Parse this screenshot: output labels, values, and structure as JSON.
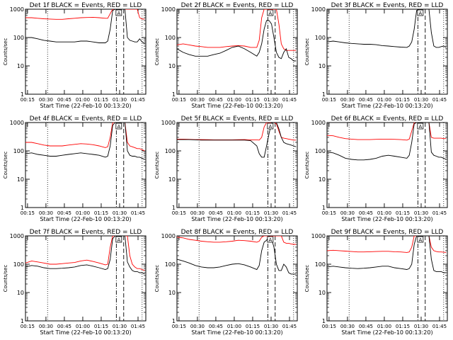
{
  "figure": {
    "x_ticks": [
      "00:15",
      "00:30",
      "00:45",
      "01:00",
      "01:15",
      "01:30",
      "01:45"
    ],
    "y_ticks": [
      "1",
      "10",
      "100",
      "1000"
    ],
    "xlabel": "Start Time (22-Feb-10 00:13:20)",
    "ylabel": "Counts/sec",
    "marker_label": "A",
    "colors": {
      "events": "#000000",
      "lld": "#ff0000"
    }
  },
  "chart_data": [
    {
      "type": "line",
      "title": "Det 1f BLACK = Events, RED = LLD",
      "x_unit": "minutes after 00:13:20",
      "x": [
        0,
        5,
        10,
        15,
        20,
        25,
        30,
        35,
        40,
        45,
        50,
        55,
        60,
        65,
        67,
        69,
        71,
        73,
        75,
        77,
        79,
        81,
        83,
        85,
        87,
        89,
        91,
        93,
        95,
        97
      ],
      "series": [
        {
          "values": [
            100,
            100,
            90,
            80,
            75,
            70,
            70,
            70,
            70,
            75,
            75,
            70,
            65,
            65,
            75,
            200,
            900,
            1000,
            1000,
            1000,
            1000,
            1000,
            100,
            80,
            75,
            70,
            70,
            90,
            70,
            60
          ]
        },
        {
          "values": [
            500,
            500,
            480,
            460,
            450,
            440,
            440,
            460,
            480,
            500,
            510,
            520,
            500,
            480,
            480,
            700,
            1000,
            1000,
            1000,
            1000,
            1000,
            1000,
            1000,
            1000,
            1000,
            1000,
            1000,
            500,
            450,
            450
          ]
        }
      ],
      "ylim": [
        1,
        1000
      ],
      "yscale": "log",
      "xlim": [
        0,
        98
      ],
      "vlines_dotted": [
        18,
        95
      ],
      "vlines_dashdot": [
        74
      ],
      "vlines_dashed": [
        80
      ],
      "marker_x": 76
    },
    {
      "type": "line",
      "title": "Det 2f BLACK = Events, RED = LLD",
      "x_unit": "minutes after 00:13:20",
      "x": [
        0,
        5,
        10,
        15,
        20,
        25,
        30,
        35,
        40,
        45,
        50,
        55,
        60,
        65,
        67,
        69,
        71,
        73,
        75,
        77,
        79,
        81,
        83,
        85,
        87,
        89,
        91,
        93,
        95,
        97
      ],
      "series": [
        {
          "values": [
            40,
            30,
            25,
            22,
            22,
            22,
            25,
            28,
            35,
            45,
            50,
            40,
            30,
            22,
            30,
            60,
            200,
            400,
            400,
            300,
            100,
            30,
            20,
            18,
            30,
            40,
            20,
            18,
            15,
            15
          ]
        },
        {
          "values": [
            55,
            60,
            55,
            50,
            48,
            45,
            45,
            45,
            48,
            50,
            52,
            50,
            45,
            45,
            80,
            500,
            1000,
            1000,
            1000,
            1000,
            1000,
            1000,
            300,
            60,
            40,
            35,
            35,
            35,
            35,
            35
          ]
        }
      ],
      "ylim": [
        1,
        1000
      ],
      "yscale": "log",
      "xlim": [
        0,
        98
      ],
      "vlines_dotted": [
        18,
        95
      ],
      "vlines_dashdot": [
        74
      ],
      "vlines_dashed": [
        80
      ],
      "marker_x": 76
    },
    {
      "type": "line",
      "title": "Det 3f BLACK = Events, RED = LLD",
      "x_unit": "minutes after 00:13:20",
      "x": [
        0,
        5,
        10,
        15,
        20,
        25,
        30,
        35,
        40,
        45,
        50,
        55,
        60,
        65,
        67,
        69,
        71,
        73,
        75,
        77,
        79,
        81,
        83,
        85,
        87,
        89,
        91,
        93,
        95,
        97
      ],
      "series": [
        {
          "values": [
            70,
            75,
            70,
            65,
            62,
            60,
            58,
            58,
            56,
            52,
            50,
            48,
            46,
            45,
            50,
            70,
            200,
            900,
            1000,
            1000,
            1000,
            1000,
            1000,
            150,
            50,
            45,
            45,
            48,
            50,
            45
          ]
        }
      ],
      "ylim": [
        1,
        1000
      ],
      "yscale": "log",
      "xlim": [
        0,
        98
      ],
      "vlines_dotted": [
        18,
        95
      ],
      "vlines_dashdot": [
        74
      ],
      "vlines_dashed": [
        80
      ],
      "marker_x": 76
    },
    {
      "type": "line",
      "title": "Det 4f BLACK = Events, RED = LLD",
      "x_unit": "minutes after 00:13:20",
      "x": [
        0,
        5,
        10,
        15,
        20,
        25,
        30,
        35,
        40,
        45,
        50,
        55,
        60,
        65,
        67,
        69,
        71,
        73,
        75,
        77,
        79,
        81,
        83,
        85,
        87,
        89,
        91,
        93,
        95,
        97
      ],
      "series": [
        {
          "values": [
            80,
            85,
            75,
            70,
            65,
            65,
            70,
            75,
            80,
            85,
            80,
            75,
            70,
            60,
            65,
            150,
            800,
            1000,
            1000,
            1000,
            1000,
            1000,
            100,
            70,
            65,
            65,
            60,
            60,
            55,
            50
          ]
        },
        {
          "values": [
            200,
            200,
            180,
            160,
            150,
            150,
            150,
            160,
            170,
            180,
            175,
            165,
            150,
            130,
            140,
            300,
            1000,
            1000,
            1000,
            1000,
            1000,
            1000,
            200,
            150,
            140,
            130,
            120,
            120,
            110,
            100
          ]
        }
      ],
      "ylim": [
        1,
        1000
      ],
      "yscale": "log",
      "xlim": [
        0,
        98
      ],
      "vlines_dotted": [
        18,
        95
      ],
      "vlines_dashdot": [
        74
      ],
      "vlines_dashed": [
        80
      ],
      "marker_x": 76
    },
    {
      "type": "line",
      "title": "Det 5f BLACK = Events, RED = LLD",
      "x_unit": "minutes after 00:13:20",
      "x": [
        0,
        5,
        10,
        15,
        20,
        25,
        30,
        35,
        40,
        45,
        50,
        55,
        60,
        65,
        67,
        69,
        71,
        73,
        75,
        77,
        79,
        81,
        83,
        85,
        87,
        89,
        91,
        93,
        95,
        97
      ],
      "series": [
        {
          "values": [
            250,
            250,
            250,
            245,
            240,
            240,
            240,
            240,
            240,
            240,
            240,
            240,
            230,
            150,
            80,
            60,
            60,
            150,
            400,
            1000,
            1000,
            1000,
            600,
            300,
            200,
            180,
            170,
            160,
            150,
            140
          ]
        },
        {
          "values": [
            260,
            260,
            255,
            250,
            250,
            248,
            245,
            245,
            245,
            245,
            248,
            250,
            245,
            245,
            240,
            300,
            700,
            1000,
            1000,
            1000,
            1000,
            900,
            500,
            300,
            280,
            270,
            260,
            250,
            240,
            240
          ]
        }
      ],
      "ylim": [
        1,
        1000
      ],
      "yscale": "log",
      "xlim": [
        0,
        98
      ],
      "vlines_dotted": [
        18,
        95
      ],
      "vlines_dashdot": [
        74
      ],
      "vlines_dashed": [
        80
      ],
      "marker_x": 76
    },
    {
      "type": "line",
      "title": "Det 6f BLACK = Events, RED = LLD",
      "x_unit": "minutes after 00:13:20",
      "x": [
        0,
        5,
        10,
        15,
        20,
        25,
        30,
        35,
        40,
        45,
        50,
        55,
        60,
        65,
        67,
        69,
        71,
        73,
        75,
        77,
        79,
        81,
        83,
        85,
        87,
        89,
        91,
        93,
        95,
        97
      ],
      "series": [
        {
          "values": [
            90,
            85,
            70,
            55,
            50,
            48,
            48,
            50,
            55,
            65,
            70,
            65,
            60,
            55,
            70,
            200,
            900,
            1000,
            1000,
            1000,
            1000,
            1000,
            1000,
            90,
            70,
            65,
            60,
            60,
            55,
            50
          ]
        },
        {
          "values": [
            350,
            340,
            300,
            270,
            260,
            250,
            250,
            250,
            255,
            260,
            260,
            255,
            250,
            240,
            260,
            500,
            1000,
            1000,
            1000,
            1000,
            1000,
            1000,
            1000,
            300,
            280,
            280,
            280,
            280,
            270,
            270
          ]
        }
      ],
      "ylim": [
        1,
        1000
      ],
      "yscale": "log",
      "xlim": [
        0,
        98
      ],
      "vlines_dotted": [
        18,
        95
      ],
      "vlines_dashdot": [
        74
      ],
      "vlines_dashed": [
        80
      ],
      "marker_x": 76
    },
    {
      "type": "line",
      "title": "Det 7f BLACK = Events, RED = LLD",
      "x_unit": "minutes after 00:13:20",
      "x": [
        0,
        5,
        10,
        15,
        20,
        25,
        30,
        35,
        40,
        45,
        50,
        55,
        60,
        65,
        67,
        69,
        71,
        73,
        75,
        77,
        79,
        81,
        83,
        85,
        87,
        89,
        91,
        93,
        95,
        97
      ],
      "series": [
        {
          "values": [
            80,
            90,
            85,
            75,
            70,
            70,
            72,
            75,
            80,
            90,
            95,
            85,
            75,
            65,
            70,
            150,
            800,
            1000,
            1000,
            1000,
            1000,
            1000,
            120,
            80,
            60,
            55,
            55,
            50,
            50,
            45
          ]
        },
        {
          "values": [
            110,
            130,
            120,
            110,
            100,
            100,
            105,
            110,
            115,
            130,
            140,
            125,
            110,
            95,
            100,
            400,
            1000,
            1000,
            1000,
            1000,
            1000,
            1000,
            1000,
            200,
            100,
            80,
            70,
            70,
            65,
            60
          ]
        }
      ],
      "ylim": [
        1,
        1000
      ],
      "yscale": "log",
      "xlim": [
        0,
        98
      ],
      "vlines_dotted": [
        18,
        95
      ],
      "vlines_dashdot": [
        74
      ],
      "vlines_dashed": [
        80
      ],
      "marker_x": 76
    },
    {
      "type": "line",
      "title": "Det 8f BLACK = Events, RED = LLD",
      "x_unit": "minutes after 00:13:20",
      "x": [
        0,
        5,
        10,
        15,
        20,
        25,
        30,
        35,
        40,
        45,
        50,
        55,
        60,
        65,
        67,
        69,
        71,
        73,
        75,
        77,
        79,
        81,
        83,
        85,
        87,
        89,
        91,
        93,
        95,
        97
      ],
      "series": [
        {
          "values": [
            150,
            130,
            110,
            90,
            80,
            75,
            75,
            80,
            90,
            100,
            105,
            95,
            80,
            65,
            90,
            300,
            600,
            700,
            1000,
            800,
            400,
            100,
            60,
            60,
            100,
            80,
            50,
            45,
            45,
            45
          ]
        },
        {
          "values": [
            900,
            850,
            750,
            700,
            650,
            620,
            600,
            600,
            620,
            650,
            700,
            680,
            650,
            600,
            650,
            900,
            1000,
            1000,
            1000,
            1000,
            1000,
            1000,
            1000,
            1000,
            600,
            550,
            550,
            520,
            500,
            500
          ]
        }
      ],
      "ylim": [
        1,
        1000
      ],
      "yscale": "log",
      "xlim": [
        0,
        98
      ],
      "vlines_dotted": [
        18,
        95
      ],
      "vlines_dashdot": [
        74
      ],
      "vlines_dashed": [
        80
      ],
      "marker_x": 76
    },
    {
      "type": "line",
      "title": "Det 9f BLACK = Events, RED = LLD",
      "x_unit": "minutes after 00:13:20",
      "x": [
        0,
        5,
        10,
        15,
        20,
        25,
        30,
        35,
        40,
        45,
        50,
        55,
        60,
        65,
        67,
        69,
        71,
        73,
        75,
        77,
        79,
        81,
        83,
        85,
        87,
        89,
        91,
        93,
        95,
        97
      ],
      "series": [
        {
          "values": [
            80,
            85,
            80,
            75,
            72,
            70,
            72,
            75,
            80,
            85,
            85,
            75,
            70,
            65,
            70,
            100,
            500,
            1000,
            1000,
            1000,
            1000,
            1000,
            1000,
            150,
            60,
            55,
            55,
            55,
            50,
            50
          ]
        },
        {
          "values": [
            300,
            310,
            300,
            290,
            280,
            270,
            270,
            275,
            280,
            285,
            285,
            275,
            270,
            260,
            270,
            400,
            1000,
            1000,
            1000,
            1000,
            1000,
            1000,
            1000,
            400,
            300,
            280,
            270,
            270,
            265,
            260
          ]
        }
      ],
      "ylim": [
        1,
        1000
      ],
      "yscale": "log",
      "xlim": [
        0,
        98
      ],
      "vlines_dotted": [
        18,
        95
      ],
      "vlines_dashdot": [
        74
      ],
      "vlines_dashed": [
        80
      ],
      "marker_x": 76
    }
  ]
}
